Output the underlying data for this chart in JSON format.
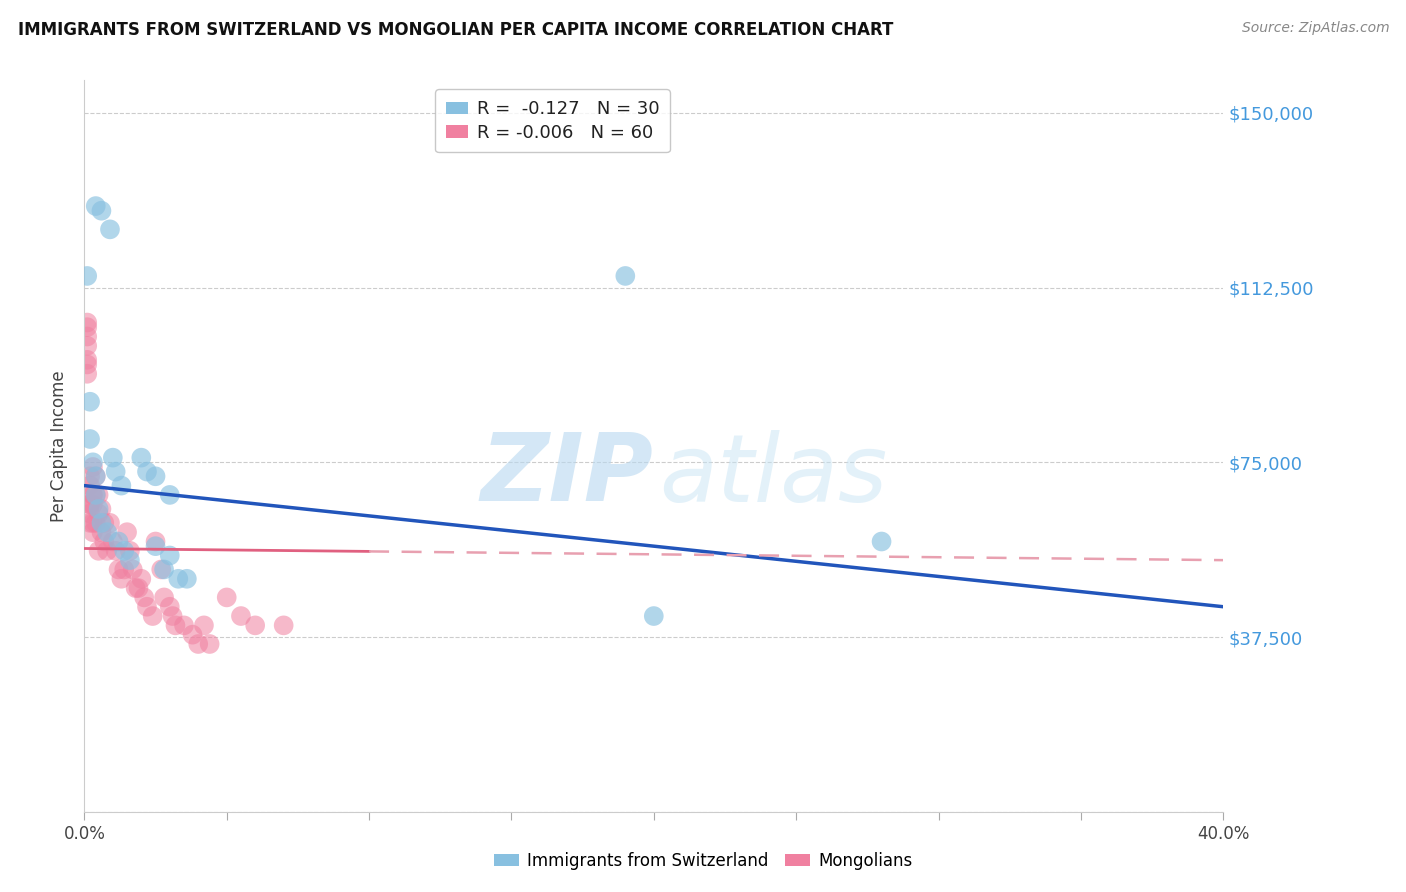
{
  "title": "IMMIGRANTS FROM SWITZERLAND VS MONGOLIAN PER CAPITA INCOME CORRELATION CHART",
  "source": "Source: ZipAtlas.com",
  "ylabel": "Per Capita Income",
  "xlim": [
    0.0,
    0.4
  ],
  "ylim": [
    0,
    157000
  ],
  "yticks": [
    0,
    37500,
    75000,
    112500,
    150000
  ],
  "ytick_labels": [
    "",
    "$37,500",
    "$75,000",
    "$112,500",
    "$150,000"
  ],
  "xticks": [
    0.0,
    0.05,
    0.1,
    0.15,
    0.2,
    0.25,
    0.3,
    0.35,
    0.4
  ],
  "xtick_labels_show": [
    "0.0%",
    "",
    "",
    "",
    "",
    "",
    "",
    "",
    "40.0%"
  ],
  "watermark_zip": "ZIP",
  "watermark_atlas": "atlas",
  "legend_line1": "R =  -0.127   N = 30",
  "legend_line2": "R = -0.006   N = 60",
  "color_blue": "#88c0e0",
  "color_pink": "#f080a0",
  "trend_blue": "#2255bb",
  "trend_pink_solid": "#e06080",
  "trend_pink_dash": "#e8a0b0",
  "color_ytick": "#4499dd",
  "background": "#ffffff",
  "swiss_x": [
    0.004,
    0.006,
    0.009,
    0.001,
    0.002,
    0.002,
    0.003,
    0.004,
    0.004,
    0.005,
    0.006,
    0.008,
    0.01,
    0.011,
    0.013,
    0.014,
    0.016,
    0.02,
    0.022,
    0.025,
    0.03,
    0.025,
    0.012,
    0.028,
    0.036,
    0.28,
    0.03,
    0.033,
    0.2,
    0.19
  ],
  "swiss_y": [
    130000,
    129000,
    125000,
    115000,
    88000,
    80000,
    75000,
    72000,
    68000,
    65000,
    62000,
    60000,
    76000,
    73000,
    70000,
    56000,
    54000,
    76000,
    73000,
    72000,
    55000,
    57000,
    58000,
    52000,
    50000,
    58000,
    68000,
    50000,
    42000,
    115000
  ],
  "mongol_x": [
    0.001,
    0.001,
    0.001,
    0.001,
    0.001,
    0.002,
    0.002,
    0.002,
    0.002,
    0.003,
    0.003,
    0.003,
    0.003,
    0.003,
    0.004,
    0.004,
    0.004,
    0.005,
    0.005,
    0.005,
    0.006,
    0.006,
    0.007,
    0.007,
    0.008,
    0.009,
    0.01,
    0.011,
    0.012,
    0.013,
    0.014,
    0.015,
    0.016,
    0.017,
    0.018,
    0.019,
    0.02,
    0.021,
    0.022,
    0.024,
    0.025,
    0.027,
    0.028,
    0.03,
    0.031,
    0.032,
    0.035,
    0.038,
    0.04,
    0.042,
    0.044,
    0.05,
    0.055,
    0.06,
    0.07,
    0.001,
    0.001,
    0.002,
    0.002,
    0.003
  ],
  "mongol_y": [
    105000,
    104000,
    102000,
    100000,
    97000,
    72000,
    70000,
    66000,
    62000,
    74000,
    68000,
    66000,
    62000,
    60000,
    72000,
    68000,
    62000,
    68000,
    64000,
    56000,
    65000,
    60000,
    62000,
    58000,
    56000,
    62000,
    58000,
    56000,
    52000,
    50000,
    52000,
    60000,
    56000,
    52000,
    48000,
    48000,
    50000,
    46000,
    44000,
    42000,
    58000,
    52000,
    46000,
    44000,
    42000,
    40000,
    40000,
    38000,
    36000,
    40000,
    36000,
    46000,
    42000,
    40000,
    40000,
    96000,
    94000,
    66000,
    64000,
    68000
  ],
  "trend_blue_x0": 0.0,
  "trend_blue_y0": 70000,
  "trend_blue_x1": 0.4,
  "trend_blue_y1": 44000,
  "trend_pink_x0": 0.0,
  "trend_pink_y0": 56500,
  "trend_pink_x1": 0.4,
  "trend_pink_y1": 54000
}
